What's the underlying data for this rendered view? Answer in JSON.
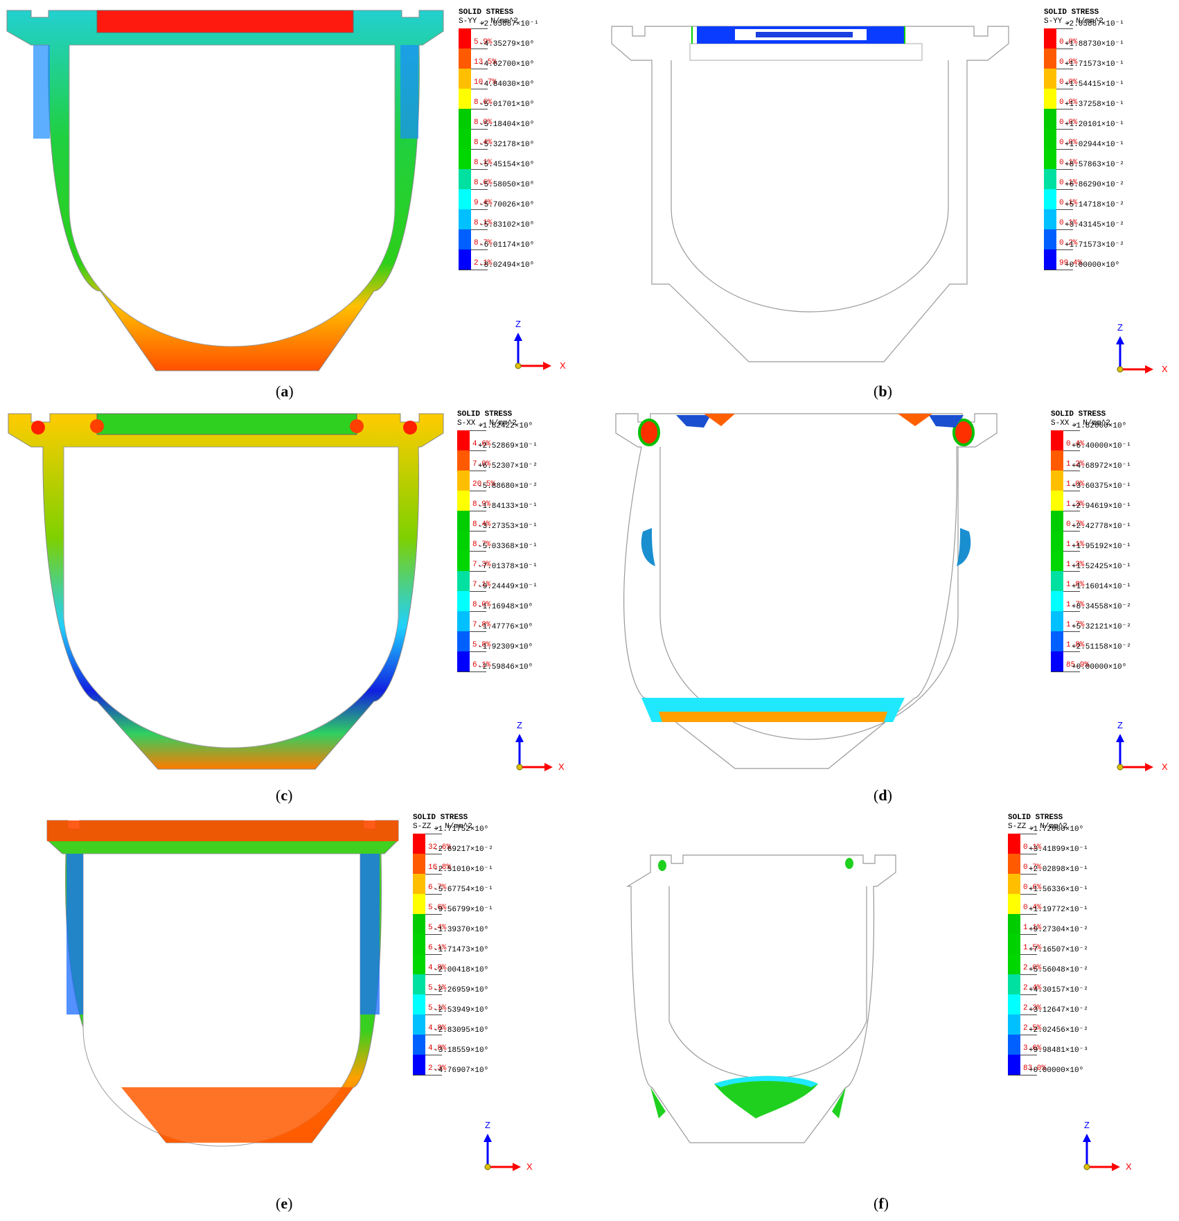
{
  "colors": {
    "bands": [
      "#ff0000",
      "#ff5a00",
      "#ffbf00",
      "#ffff00",
      "#00cc00",
      "#00d200",
      "#00d600",
      "#00e0a0",
      "#00ffff",
      "#00c0ff",
      "#0060ff",
      "#0000ff"
    ],
    "axis_z": "#0000ff",
    "axis_x": "#ff0000",
    "pct_text": "#e00000"
  },
  "panels": [
    {
      "caption": "a",
      "legend_title": "SOLID STRESS",
      "legend_units": "S-YY , N/mm^2",
      "values": [
        "+2.05887×10⁻¹",
        "-4.35279×10⁰",
        "-4.62700×10⁰",
        "-4.84030×10⁰",
        "-5.01701×10⁰",
        "-5.18404×10⁰",
        "-5.32178×10⁰",
        "-5.45154×10⁰",
        "-5.58050×10⁰",
        "-5.70026×10⁰",
        "-5.83102×10⁰",
        "-6.01174×10⁰",
        "-8.02494×10⁰"
      ],
      "percents": [
        "5.9%",
        "13.5%",
        "10.7%",
        "8.6%",
        "8.0%",
        "8.4%",
        "8.1%",
        "8.6%",
        "9.4%",
        "8.1%",
        "8.7%",
        "2.1%"
      ],
      "axis": {
        "z": "Z",
        "x": "X"
      }
    },
    {
      "caption": "b",
      "legend_title": "SOLID STRESS",
      "legend_units": "S-YY , N/mm^2",
      "values": [
        "+2.05887×10⁻¹",
        "+1.88730×10⁻¹",
        "+1.71573×10⁻¹",
        "+1.54415×10⁻¹",
        "+1.37258×10⁻¹",
        "+1.20101×10⁻¹",
        "+1.02944×10⁻¹",
        "+8.57863×10⁻²",
        "+6.86290×10⁻²",
        "+5.14718×10⁻²",
        "+3.43145×10⁻²",
        "+1.71573×10⁻²",
        "+0.00000×10⁰"
      ],
      "percents": [
        "0.0%",
        "0.0%",
        "0.0%",
        "0.0%",
        "0.0%",
        "0.0%",
        "0.1%",
        "0.1%",
        "0.1%",
        "0.1%",
        "0.2%",
        "99.4%"
      ],
      "axis": {
        "z": "Z",
        "x": "X"
      }
    },
    {
      "caption": "c",
      "legend_title": "SOLID STRESS",
      "legend_units": "S-XX , N/mm^2",
      "values": [
        "+1.82422×10⁰",
        "+2.52869×10⁻¹",
        "+6.52307×10⁻²",
        "-5.88680×10⁻²",
        "-1.84133×10⁻¹",
        "-3.27353×10⁻¹",
        "-5.03368×10⁻¹",
        "-7.01378×10⁻¹",
        "-9.24449×10⁻¹",
        "-1.16948×10⁰",
        "-1.47776×10⁰",
        "-1.92309×10⁰",
        "-2.59846×10⁰"
      ],
      "percents": [
        "4.6%",
        "7.0%",
        "20.5%",
        "8.9%",
        "8.4%",
        "8.7%",
        "7.3%",
        "7.1%",
        "8.0%",
        "7.8%",
        "5.8%",
        "6.1%"
      ],
      "axis": {
        "z": "Z",
        "x": "X"
      }
    },
    {
      "caption": "d",
      "legend_title": "SOLID STRESS",
      "legend_units": "S-XX , N/mm^2",
      "values": [
        "+1.82000×10⁰",
        "+6.40000×10⁻¹",
        "+4.68972×10⁻¹",
        "+3.60375×10⁻¹",
        "+2.94619×10⁻¹",
        "+2.42778×10⁻¹",
        "+1.95192×10⁻¹",
        "+1.52425×10⁻¹",
        "+1.16014×10⁻¹",
        "+8.34558×10⁻²",
        "+5.32121×10⁻²",
        "+2.51158×10⁻²",
        "+0.00000×10⁰"
      ],
      "percents": [
        "0.4%",
        "1.2%",
        "1.0%",
        "1.3%",
        "0.7%",
        "1.1%",
        "1.3%",
        "1.8%",
        "1.7%",
        "1.7%",
        "1.8%",
        "85.9%"
      ],
      "axis": {
        "z": "Z",
        "x": "X"
      }
    },
    {
      "caption": "e",
      "legend_title": "SOLID STRESS",
      "legend_units": "S-ZZ , N/mm^2",
      "values": [
        "+1.71752×10⁰",
        "-2.69217×10⁻²",
        "-2.51010×10⁻¹",
        "-5.67754×10⁻¹",
        "-9.56799×10⁻¹",
        "-1.39370×10⁰",
        "-1.71473×10⁰",
        "-2.00418×10⁰",
        "-2.26959×10⁰",
        "-2.53949×10⁰",
        "-2.83095×10⁰",
        "-3.18559×10⁰",
        "-4.76907×10⁰"
      ],
      "percents": [
        "32.6%",
        "16.8%",
        "6.7%",
        "5.6%",
        "5.4%",
        "6.1%",
        "4.8%",
        "5.1%",
        "5.1%",
        "4.8%",
        "4.8%",
        "2.3%"
      ],
      "axis": {
        "z": "Z",
        "x": "X"
      }
    },
    {
      "caption": "f",
      "legend_title": "SOLID STRESS",
      "legend_units": "S-ZZ , N/mm^2",
      "values": [
        "+1.72000×10⁰",
        "+3.41899×10⁻¹",
        "+2.02898×10⁻¹",
        "+1.56336×10⁻¹",
        "+1.19772×10⁻¹",
        "+9.27304×10⁻²",
        "+7.16507×10⁻²",
        "+5.56048×10⁻²",
        "+4.30157×10⁻²",
        "+3.12647×10⁻²",
        "+2.02456×10⁻²",
        "+9.98481×10⁻³",
        "+0.00000×10⁰"
      ],
      "percents": [
        "0.1%",
        "0.7%",
        "0.6%",
        "0.4%",
        "1.1%",
        "1.5%",
        "2.0%",
        "2.4%",
        "2.3%",
        "2.5%",
        "3.6%",
        "83.0%"
      ],
      "axis": {
        "z": "Z",
        "x": "X"
      }
    }
  ]
}
